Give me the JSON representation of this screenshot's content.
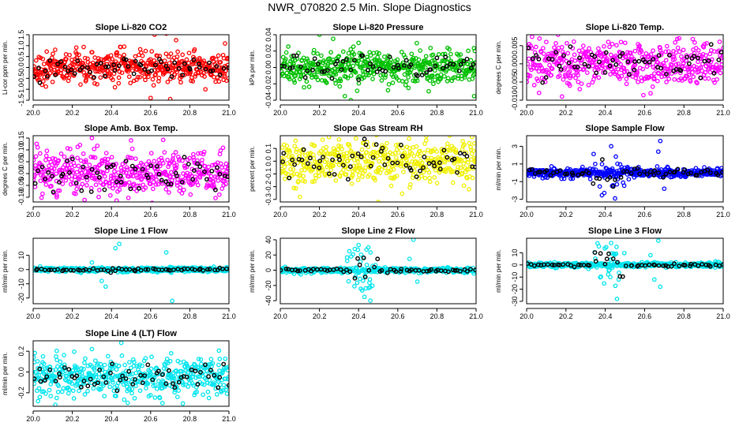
{
  "figure_title": "NWR_070820  2.5 Min. Slope Diagnostics",
  "chart_data": [
    {
      "type": "scatter",
      "title": "Slope Li-820 CO2",
      "ylabel": "Li-cor ppm per min.",
      "color": "#ff0000",
      "xlim": [
        20.0,
        21.0
      ],
      "x_ticks": [
        "20.0",
        "20.2",
        "20.4",
        "20.6",
        "20.8",
        "21.0"
      ],
      "ylim": [
        -1.5,
        1.5
      ],
      "y_ticks": [
        -1.5,
        -1.0,
        -0.5,
        0.0,
        0.5,
        1.0,
        1.5
      ],
      "y_tick_labels": [
        "-1.5",
        "-1.0",
        "-0.5",
        "0.0",
        "0.5",
        "1.0",
        "1.5"
      ],
      "spread": 0.35,
      "outliers": [
        [
          20.62,
          1.5
        ],
        [
          20.68,
          1.55
        ],
        [
          20.73,
          1.25
        ],
        [
          20.6,
          -1.4
        ],
        [
          20.7,
          -1.45
        ],
        [
          20.98,
          1.1
        ],
        [
          20.88,
          -1.0
        ]
      ]
    },
    {
      "type": "scatter",
      "title": "Slope Li-820 Pressure",
      "ylabel": "kPa per min.",
      "color": "#00c000",
      "xlim": [
        20.0,
        21.0
      ],
      "x_ticks": [
        "20.0",
        "20.2",
        "20.4",
        "20.6",
        "20.8",
        "21.0"
      ],
      "ylim": [
        -0.04,
        0.04
      ],
      "y_ticks": [
        -0.04,
        -0.02,
        0.0,
        0.02,
        0.04
      ],
      "y_tick_labels": [
        "-0.04",
        "-0.02",
        "0.00",
        "0.02",
        "0.04"
      ],
      "spread": 0.01,
      "outliers": [
        [
          20.2,
          0.04
        ],
        [
          20.33,
          -0.035
        ],
        [
          20.36,
          -0.04
        ],
        [
          20.4,
          0.03
        ],
        [
          20.55,
          -0.028
        ],
        [
          20.99,
          -0.035
        ],
        [
          20.27,
          0.035
        ]
      ]
    },
    {
      "type": "scatter",
      "title": "Slope Li-820 Temp.",
      "ylabel": "degrees C per min.",
      "color": "#ff00ff",
      "xlim": [
        20.0,
        21.0
      ],
      "x_ticks": [
        "20.0",
        "20.2",
        "20.4",
        "20.6",
        "20.8",
        "21.0"
      ],
      "ylim": [
        -0.01,
        0.008
      ],
      "y_ticks": [
        -0.01,
        -0.005,
        0.0,
        0.005
      ],
      "y_tick_labels": [
        "-0.010",
        "-0.005",
        "0.000",
        "0.005"
      ],
      "spread": 0.003,
      "outliers": [
        [
          20.16,
          0.008
        ],
        [
          20.18,
          -0.009
        ],
        [
          20.1,
          0.006
        ],
        [
          20.22,
          -0.006
        ]
      ]
    },
    {
      "type": "scatter",
      "title": "Slope Amb. Box Temp.",
      "ylabel": "degrees C per min.",
      "color": "#ff00ff",
      "xlim": [
        20.0,
        21.0
      ],
      "x_ticks": [
        "20.0",
        "20.2",
        "20.4",
        "20.6",
        "20.8",
        "21.0"
      ],
      "ylim": [
        -0.12,
        0.16
      ],
      "y_ticks": [
        -0.1,
        -0.05,
        0.0,
        0.05,
        0.1,
        0.15
      ],
      "y_tick_labels": [
        "-0.10",
        "-0.05",
        "0.00",
        "0.05",
        "0.10",
        "0.15"
      ],
      "spread": 0.05,
      "outliers": [
        [
          20.3,
          0.15
        ],
        [
          20.5,
          0.14
        ],
        [
          20.12,
          -0.1
        ]
      ]
    },
    {
      "type": "scatter",
      "title": "Slope Gas Stream RH",
      "ylabel": "percent per min.",
      "color": "#f0f000",
      "xlim": [
        20.0,
        21.0
      ],
      "x_ticks": [
        "20.0",
        "20.2",
        "20.4",
        "20.6",
        "20.8",
        "21.0"
      ],
      "ylim": [
        -0.32,
        0.2
      ],
      "y_ticks": [
        -0.3,
        -0.2,
        -0.1,
        0.0,
        0.1
      ],
      "y_tick_labels": [
        "-0.3",
        "-0.2",
        "-0.1",
        "0.0",
        "0.1"
      ],
      "spread": 0.09,
      "outliers": [
        [
          20.5,
          -0.32
        ],
        [
          20.3,
          0.17
        ],
        [
          20.1,
          -0.28
        ]
      ]
    },
    {
      "type": "scatter",
      "title": "Slope Sample Flow",
      "ylabel": "ml/min per min.",
      "color": "#0000ff",
      "xlim": [
        20.0,
        21.0
      ],
      "x_ticks": [
        "20.0",
        "20.2",
        "20.4",
        "20.6",
        "20.8",
        "21.0"
      ],
      "ylim": [
        -3.3,
        4.2
      ],
      "y_ticks": [
        -3,
        -1,
        1,
        3
      ],
      "y_tick_labels": [
        "-3",
        "-1",
        "1",
        "3"
      ],
      "spread": 0.25,
      "burst": {
        "from": 20.32,
        "to": 20.5,
        "amp": 2.6
      },
      "outliers": [
        [
          20.68,
          3.6
        ],
        [
          20.67,
          2.4
        ],
        [
          20.45,
          -2.9
        ],
        [
          20.43,
          3.0
        ],
        [
          20.7,
          -1.8
        ]
      ]
    },
    {
      "type": "scatter",
      "title": "Slope Line 1 Flow",
      "ylabel": "ml/min per min.",
      "color": "#00e5ee",
      "xlim": [
        20.0,
        21.0
      ],
      "x_ticks": [
        "20.0",
        "20.2",
        "20.4",
        "20.6",
        "20.8",
        "21.0"
      ],
      "ylim": [
        -24,
        22
      ],
      "y_ticks": [
        -20,
        -10,
        0,
        10
      ],
      "y_tick_labels": [
        "-20",
        "-10",
        "0",
        "10"
      ],
      "spread": 0.8,
      "outliers": [
        [
          20.44,
          18
        ],
        [
          20.42,
          15
        ],
        [
          20.68,
          12
        ],
        [
          20.35,
          -8
        ],
        [
          20.37,
          -12
        ],
        [
          20.71,
          -22
        ],
        [
          20.3,
          5
        ]
      ]
    },
    {
      "type": "scatter",
      "title": "Slope Line 2 Flow",
      "ylabel": "ml/min per min.",
      "color": "#00e5ee",
      "xlim": [
        20.0,
        21.0
      ],
      "x_ticks": [
        "20.0",
        "20.2",
        "20.4",
        "20.6",
        "20.8",
        "21.0"
      ],
      "ylim": [
        -44,
        42
      ],
      "y_ticks": [
        -40,
        -20,
        0,
        20,
        40
      ],
      "y_tick_labels": [
        "-40",
        "-20",
        "0",
        "20",
        "40"
      ],
      "spread": 1.5,
      "burst": {
        "from": 20.34,
        "to": 20.5,
        "amp": 28
      },
      "outliers": [
        [
          20.68,
          40
        ],
        [
          20.66,
          15
        ],
        [
          20.7,
          -15
        ],
        [
          20.46,
          -40
        ],
        [
          20.43,
          -35
        ],
        [
          20.4,
          33
        ],
        [
          20.45,
          30
        ]
      ]
    },
    {
      "type": "scatter",
      "title": "Slope Line 3 Flow",
      "ylabel": "ml/min per min.",
      "color": "#00e5ee",
      "xlim": [
        20.0,
        21.0
      ],
      "x_ticks": [
        "20.0",
        "20.2",
        "20.4",
        "20.6",
        "20.8",
        "21.0"
      ],
      "ylim": [
        -32,
        22
      ],
      "y_ticks": [
        -30,
        -20,
        -10,
        0,
        10
      ],
      "y_tick_labels": [
        "-30",
        "-20",
        "-10",
        "0",
        "10"
      ],
      "spread": 1.0,
      "burst": {
        "from": 20.34,
        "to": 20.5,
        "amp": 18
      },
      "outliers": [
        [
          20.67,
          20
        ],
        [
          20.68,
          -18
        ],
        [
          20.46,
          -28
        ],
        [
          20.43,
          18
        ],
        [
          20.65,
          -12
        ],
        [
          20.63,
          8
        ]
      ]
    },
    {
      "type": "scatter",
      "title": "Slope Line 4 (LT) Flow",
      "ylabel": "ml/min per min.",
      "color": "#00e5ee",
      "xlim": [
        20.0,
        21.0
      ],
      "x_ticks": [
        "20.0",
        "20.2",
        "20.4",
        "20.6",
        "20.8",
        "21.0"
      ],
      "ylim": [
        -0.33,
        0.3
      ],
      "y_ticks": [
        -0.2,
        0.0,
        0.2
      ],
      "y_tick_labels": [
        "-0.2",
        "0.0",
        "0.2"
      ],
      "center": -0.05,
      "spread": 0.09,
      "outliers": [
        [
          20.45,
          0.28
        ],
        [
          20.3,
          0.22
        ],
        [
          20.05,
          0.15
        ],
        [
          20.66,
          -0.3
        ],
        [
          20.12,
          -0.25
        ]
      ]
    }
  ]
}
